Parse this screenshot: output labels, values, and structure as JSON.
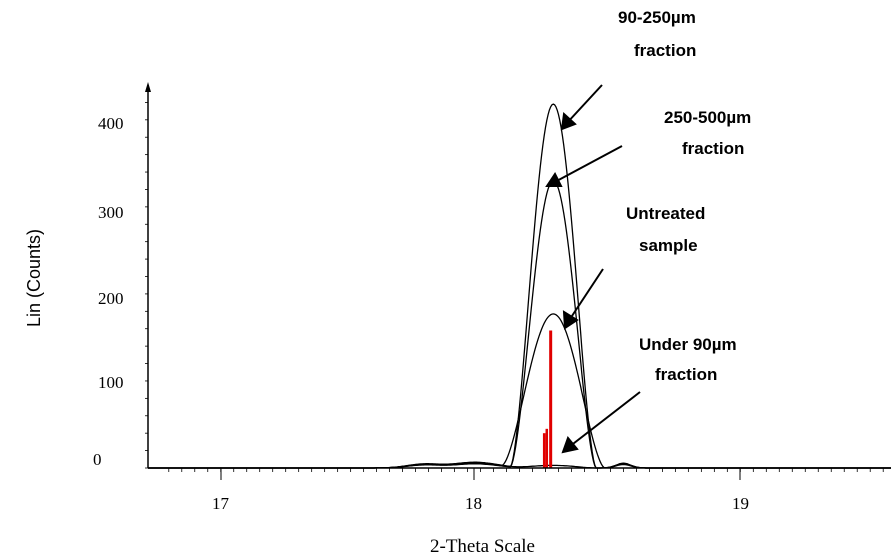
{
  "chart_data": {
    "type": "line",
    "xlabel": "2-Theta Scale",
    "ylabel": "Lin (Counts)",
    "xlim": [
      16.72,
      19.58
    ],
    "ylim": [
      0,
      440
    ],
    "x_ticks": [
      "17",
      "18",
      "19"
    ],
    "y_ticks": [
      "400",
      "300",
      "200",
      "100",
      "0"
    ],
    "series": [
      {
        "peak_x": 18.28,
        "peak_y": 418,
        "half_width": 0.15,
        "color": "#000000"
      },
      {
        "peak_x": 18.28,
        "peak_y": 330,
        "half_width": 0.15,
        "color": "#000000"
      },
      {
        "peak_x": 18.28,
        "peak_y": 177,
        "half_width": 0.18,
        "color": "#000000"
      },
      {
        "peak_x": 18.28,
        "peak_y": 3,
        "half_width": 0.15,
        "color": "#000000"
      }
    ],
    "reference_lines": [
      {
        "x": 18.27,
        "y": 158,
        "color": "#e00000"
      },
      {
        "x": 18.255,
        "y": 45,
        "color": "#e00000"
      },
      {
        "x": 18.245,
        "y": 40,
        "color": "#e00000"
      }
    ],
    "annotations": [
      {
        "lines": [
          "90-250µm",
          "fraction"
        ],
        "target": [
          18.28,
          418
        ]
      },
      {
        "lines": [
          "250-500µm",
          "fraction"
        ],
        "target": [
          18.28,
          330
        ]
      },
      {
        "lines": [
          "Untreated",
          "sample"
        ],
        "target": [
          18.28,
          177
        ]
      },
      {
        "lines": [
          "Under 90µm",
          "fraction"
        ],
        "target": [
          18.3,
          18
        ]
      }
    ]
  }
}
